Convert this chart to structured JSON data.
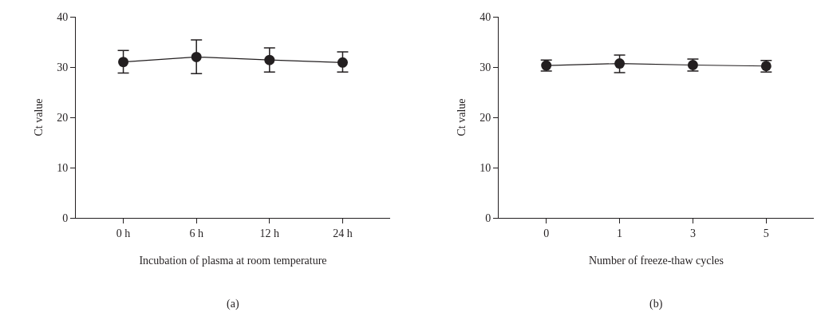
{
  "chart_data": [
    {
      "type": "line",
      "categories": [
        "0 h",
        "6 h",
        "12 h",
        "24 h"
      ],
      "xlabel": "Incubation of plasma at room temperature",
      "ylabel": "Ct value",
      "ylim": [
        0,
        40
      ],
      "yticks": [
        0,
        10,
        20,
        30,
        40
      ],
      "grid": false,
      "marker": "circle",
      "line_style": "solid",
      "annotations": [
        "(a)"
      ],
      "series": [
        {
          "color": "#231f20",
          "values": [
            31.0,
            32.0,
            31.4,
            30.9
          ],
          "errors": [
            [
              28.8,
              33.3
            ],
            [
              28.7,
              35.4
            ],
            [
              29.0,
              33.8
            ],
            [
              29.0,
              33.0
            ]
          ]
        }
      ]
    },
    {
      "type": "line",
      "categories": [
        "0",
        "1",
        "3",
        "5"
      ],
      "xlabel": "Number of freeze-thaw cycles",
      "ylabel": "Ct value",
      "ylim": [
        0,
        40
      ],
      "yticks": [
        0,
        10,
        20,
        30,
        40
      ],
      "grid": false,
      "marker": "circle",
      "line_style": "solid",
      "annotations": [
        "(b)"
      ],
      "series": [
        {
          "color": "#231f20",
          "values": [
            30.3,
            30.7,
            30.4,
            30.2
          ],
          "errors": [
            [
              29.2,
              31.4
            ],
            [
              28.9,
              32.4
            ],
            [
              29.2,
              31.6
            ],
            [
              29.0,
              31.3
            ]
          ]
        }
      ]
    }
  ]
}
